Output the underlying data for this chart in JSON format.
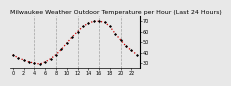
{
  "title": "Milwaukee Weather Outdoor Temperature per Hour (Last 24 Hours)",
  "hours": [
    0,
    1,
    2,
    3,
    4,
    5,
    6,
    7,
    8,
    9,
    10,
    11,
    12,
    13,
    14,
    15,
    16,
    17,
    18,
    19,
    20,
    21,
    22,
    23
  ],
  "temps": [
    38,
    35,
    33,
    31,
    30,
    29,
    31,
    34,
    38,
    43,
    49,
    55,
    60,
    65,
    68,
    70,
    70,
    69,
    65,
    58,
    52,
    46,
    42,
    38
  ],
  "line_color": "#cc0000",
  "marker_color": "#000000",
  "bg_color": "#e8e8e8",
  "plot_bg_color": "#e8e8e8",
  "grid_color": "#999999",
  "ylim": [
    25,
    75
  ],
  "xlim": [
    -0.5,
    23.5
  ],
  "yticks": [
    30,
    40,
    50,
    60,
    70
  ],
  "ytick_labels": [
    "30",
    "40",
    "50",
    "60",
    "70"
  ],
  "xticks": [
    0,
    2,
    4,
    6,
    8,
    10,
    12,
    14,
    16,
    18,
    20,
    22
  ],
  "title_fontsize": 4.5,
  "tick_fontsize": 3.5,
  "vgrid_positions": [
    4,
    8,
    12,
    16,
    20
  ]
}
